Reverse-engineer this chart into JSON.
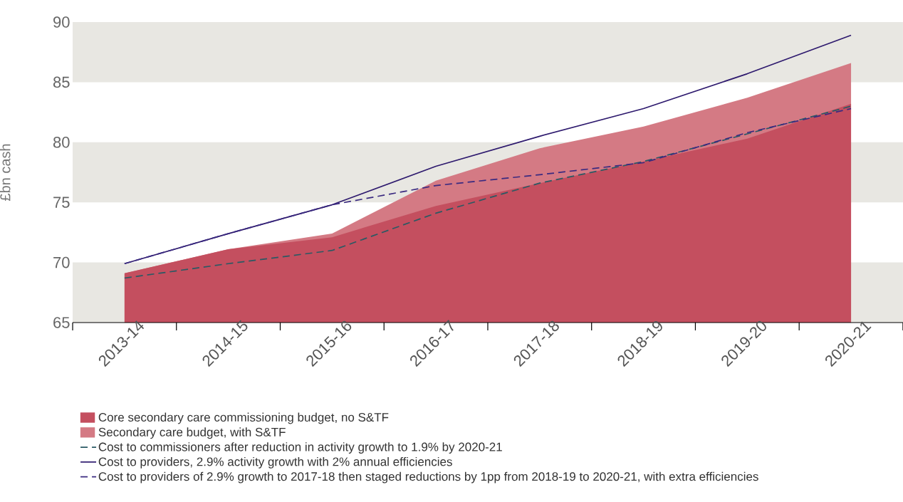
{
  "chart_data": {
    "type": "area",
    "ylabel": "£bn cash",
    "categories": [
      "2013-14",
      "2014-15",
      "2015-16",
      "2016-17",
      "2017-18",
      "2018-19",
      "2019-20",
      "2020-21"
    ],
    "series": [
      {
        "name": "Core secondary care commissioning budget, no S&TF",
        "color": "#c44f5f",
        "values": [
          69.1,
          71.1,
          72.1,
          74.7,
          76.6,
          78.4,
          80.3,
          83.2
        ]
      },
      {
        "name": "Secondary care budget, with S&TF",
        "color": "#d47a84",
        "values": [
          69.1,
          71.1,
          72.4,
          76.8,
          79.5,
          81.3,
          83.7,
          86.6
        ]
      },
      {
        "name": "Cost to commissioners after reduction in activity growth to 1.9% by 2020-21",
        "type": "line",
        "line_style": "dashed",
        "color": "#2a5a64",
        "values": [
          68.7,
          69.9,
          71.0,
          74.1,
          76.6,
          78.4,
          80.7,
          83.0
        ]
      },
      {
        "name": "Cost to providers, 2.9% activity growth with 2% annual efficiencies",
        "type": "line",
        "line_style": "solid",
        "color": "#2e1a6e",
        "values": [
          69.9,
          72.4,
          74.8,
          78.0,
          80.5,
          82.8,
          85.7,
          88.9
        ]
      },
      {
        "name": "Cost to providers of 2.9% growth to 2017-18 then staged reductions by 1pp from 2018-19 to 2020-21, with extra efficiencies",
        "type": "line",
        "line_style": "dashed",
        "color": "#3a2a80",
        "values": [
          69.9,
          72.4,
          74.8,
          76.4,
          77.3,
          78.3,
          80.8,
          82.8
        ]
      }
    ],
    "ylim": [
      65,
      90
    ],
    "yticks": [
      65,
      70,
      75,
      80,
      85,
      90
    ],
    "bands": [
      {
        "axis": "y",
        "from": 65,
        "to": 70,
        "color": "#e8e7e2"
      },
      {
        "axis": "y",
        "from": 75,
        "to": 80,
        "color": "#e8e7e2"
      },
      {
        "axis": "y",
        "from": 85,
        "to": 90,
        "color": "#e8e7e2"
      }
    ],
    "legend": "bottom"
  }
}
